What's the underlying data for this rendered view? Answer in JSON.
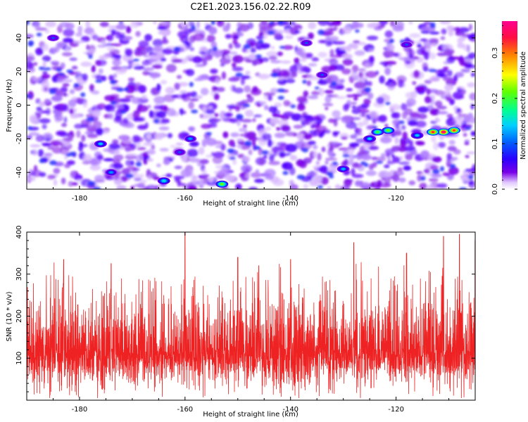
{
  "title": "C2E1.2023.156.02.22.R09",
  "colors": {
    "snr_line": "#ee2222",
    "colormap": [
      "#ffffff",
      "#c8a0ff",
      "#7a00e8",
      "#3a00ff",
      "#0050ff",
      "#00c8ff",
      "#00ff80",
      "#80ff00",
      "#ffff00",
      "#ff8000",
      "#ff0040",
      "#ff0090"
    ]
  },
  "chart_data": [
    {
      "type": "heatmap",
      "name": "spectrogram",
      "xlabel": "Height of straight line (km)",
      "ylabel": "Frequency (Hz)",
      "xlim": [
        -190,
        -105
      ],
      "ylim": [
        -50,
        50
      ],
      "x_ticks": [
        -180,
        -160,
        -140,
        -120
      ],
      "y_ticks": [
        -40,
        -20,
        0,
        20,
        40
      ],
      "colorbar": {
        "label": "Normalized spectral amplitude",
        "range": [
          0,
          0.37
        ],
        "ticks": [
          0.0,
          0.1,
          0.2,
          0.3
        ]
      },
      "hotspots": [
        {
          "x": -111,
          "y": -16,
          "value": 0.37
        },
        {
          "x": -113,
          "y": -16,
          "value": 0.33
        },
        {
          "x": -109,
          "y": -15,
          "value": 0.32
        },
        {
          "x": -121.5,
          "y": -15,
          "value": 0.22
        },
        {
          "x": -123.5,
          "y": -16,
          "value": 0.2
        },
        {
          "x": -125,
          "y": -20,
          "value": 0.14
        },
        {
          "x": -116,
          "y": -18,
          "value": 0.14
        },
        {
          "x": -153,
          "y": -47,
          "value": 0.22
        },
        {
          "x": -164,
          "y": -45,
          "value": 0.15
        },
        {
          "x": -176,
          "y": -23,
          "value": 0.14
        },
        {
          "x": -174,
          "y": -40,
          "value": 0.12
        },
        {
          "x": -159,
          "y": -20,
          "value": 0.12
        },
        {
          "x": -130,
          "y": -38,
          "value": 0.13
        },
        {
          "x": -137,
          "y": 37,
          "value": 0.1
        },
        {
          "x": -161,
          "y": -28,
          "value": 0.1
        },
        {
          "x": -134,
          "y": 18,
          "value": 0.1
        },
        {
          "x": -185,
          "y": 40,
          "value": 0.1
        },
        {
          "x": -118,
          "y": 36,
          "value": 0.1
        }
      ]
    },
    {
      "type": "line",
      "name": "snr",
      "xlabel": "Height of straight line (km)",
      "ylabel": "SNR (10 * v/v)",
      "xlim": [
        -190,
        -105
      ],
      "ylim": [
        0,
        400
      ],
      "x_ticks": [
        -180,
        -160,
        -140,
        -120
      ],
      "y_ticks": [
        100,
        200,
        300,
        400
      ],
      "series_summary": {
        "typical_min": 40,
        "typical_mean": 125,
        "typical_max": 300,
        "peak": 400
      },
      "peaks": [
        {
          "x": -160,
          "y": 400
        },
        {
          "x": -111,
          "y": 390
        },
        {
          "x": -108,
          "y": 395
        },
        {
          "x": -128,
          "y": 375
        },
        {
          "x": -183,
          "y": 335
        },
        {
          "x": -150,
          "y": 340
        },
        {
          "x": -118,
          "y": 350
        },
        {
          "x": -140,
          "y": 335
        },
        {
          "x": -174,
          "y": 325
        },
        {
          "x": -146,
          "y": 320
        },
        {
          "x": -105,
          "y": 380
        }
      ]
    }
  ]
}
